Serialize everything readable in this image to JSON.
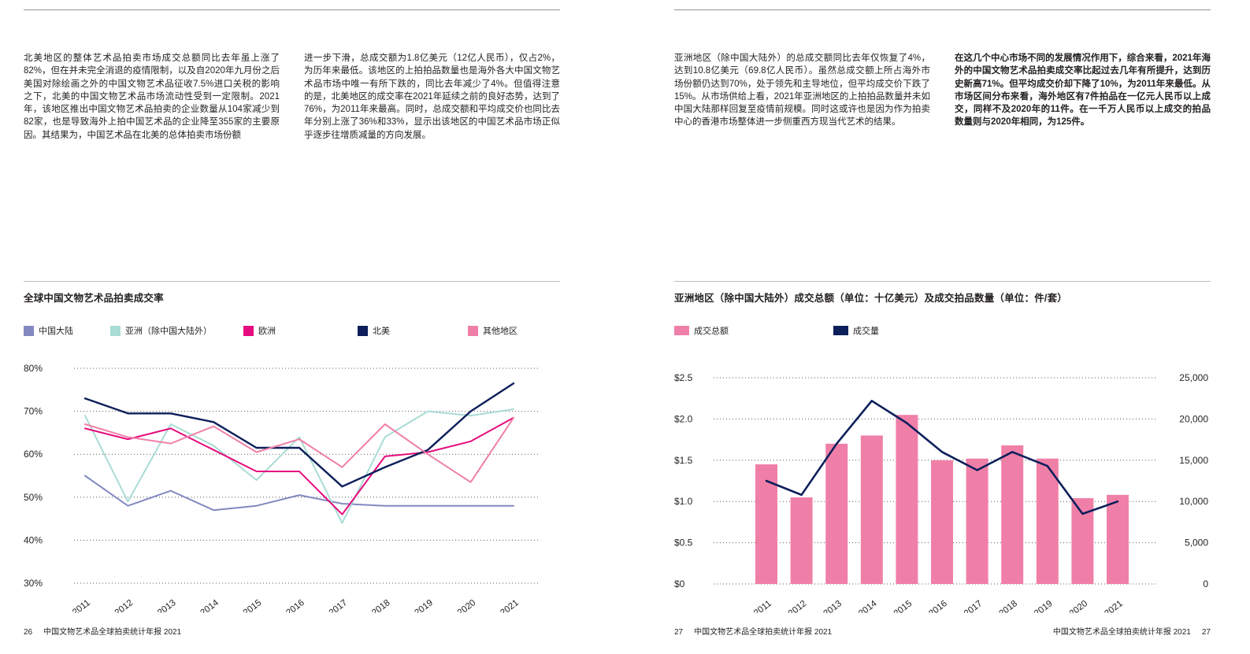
{
  "pages": {
    "left": {
      "page_number": "26",
      "report_title": "中国文物艺术品全球拍卖统计年报 2021",
      "paragraphs": {
        "col1": "北美地区的整体艺术品拍卖市场成交总额同比去年虽上涨了82%，但在并未完全消退的疫情限制，以及自2020年九月份之后美国对除绘画之外的中国文物艺术品征收7.5%进口关税的影响之下，北美的中国文物艺术品市场流动性受到一定限制。2021年，该地区推出中国文物艺术品拍卖的企业数量从104家减少到82家，也是导致海外上拍中国艺术品的企业降至355家的主要原因。其结果为，中国艺术品在北美的总体拍卖市场份额",
        "col2": "进一步下滑，总成交额为1.8亿美元（12亿人民币），仅占2%，为历年来最低。该地区的上拍拍品数量也是海外各大中国文物艺术品市场中唯一有所下跌的，同比去年减少了4%。但值得注意的是，北美地区的成交率在2021年延续之前的良好态势，达到了76%，为2011年来最高。同时，总成交额和平均成交价也同比去年分别上涨了36%和33%，显示出该地区的中国艺术品市场正似乎逐步往增质减量的方向发展。"
      }
    },
    "right": {
      "page_number": "27",
      "report_title": "中国文物艺术品全球拍卖统计年报 2021",
      "paragraphs": {
        "col1": "亚洲地区（除中国大陆外）的总成交额同比去年仅恢复了4%，达到10.8亿美元（69.8亿人民币）。虽然总成交额上所占海外市场份额仍达到70%，处于领先和主导地位，但平均成交价下跌了15%。从市场供给上看，2021年亚洲地区的上拍拍品数量并未如中国大陆那样回复至疫情前规模。同时这或许也是因为作为拍卖中心的香港市场整体进一步侧重西方现当代艺术的结果。",
        "col2_bold": "在这几个中心市场不同的发展情况作用下，综合来看，2021年海外的中国文物艺术品拍卖成交率比起过去几年有所提升，达到历史新高71%。但平均成交价却下降了10%，为2011年来最低。从市场区间分布来看，海外地区有7件拍品在一亿元人民币以上成交，同样不及2020年的11件。在一千万人民币以上成交的拍品数量则与2020年相同，为125件。"
      }
    }
  },
  "colors": {
    "mainland": "#8289c0",
    "asia": "#a9dcd4",
    "europe": "#e50c7e",
    "north_america": "#0c1f5a",
    "other": "#f07fa8",
    "bar": "#f07fa8",
    "volume_line": "#0c1f5a",
    "grid": "#595959",
    "text": "#231f20"
  },
  "chart_data": [
    {
      "type": "line",
      "title": "全球中国文物艺术品拍卖成交率",
      "x": [
        "2011",
        "2012",
        "2013",
        "2014",
        "2015",
        "2016",
        "2017",
        "2018",
        "2019",
        "2020",
        "2021"
      ],
      "ylim": [
        30,
        80
      ],
      "yticks": [
        "80%",
        "70%",
        "60%",
        "50%",
        "40%",
        "30%"
      ],
      "grid": "dotted-horizontal",
      "legend_position": "top",
      "series": [
        {
          "name": "中国大陆",
          "color_key": "mainland",
          "values": [
            55,
            48,
            51.5,
            47,
            48,
            50.5,
            48.5,
            48,
            48,
            48,
            48
          ]
        },
        {
          "name": "亚洲（除中国大陆外）",
          "color_key": "asia",
          "values": [
            69,
            49,
            67,
            62,
            54,
            64,
            44,
            64,
            70,
            69,
            70.5
          ]
        },
        {
          "name": "欧洲",
          "color_key": "europe",
          "values": [
            66,
            63.5,
            66,
            61,
            56,
            56,
            46,
            59.5,
            60.5,
            63,
            68.5
          ]
        },
        {
          "name": "北美",
          "color_key": "north_america",
          "values": [
            73,
            69.5,
            69.5,
            67.5,
            61.5,
            61.5,
            52.5,
            57,
            61,
            70,
            76.5
          ]
        },
        {
          "name": "其他地区",
          "color_key": "other",
          "values": [
            67,
            64,
            62.5,
            66.5,
            60.5,
            63.5,
            57,
            67,
            60,
            53.5,
            68.5
          ]
        }
      ]
    },
    {
      "type": "bar+line",
      "title": "亚洲地区（除中国大陆外）成交总额（单位：十亿美元）及成交拍品数量（单位：件/套）",
      "categories": [
        "2011",
        "2012",
        "2013",
        "2014",
        "2015",
        "2016",
        "2017",
        "2018",
        "2019",
        "2020",
        "2021"
      ],
      "bar_series": {
        "name": "成交总额",
        "unit": "十亿美元",
        "values": [
          1.45,
          1.05,
          1.7,
          1.8,
          2.05,
          1.5,
          1.52,
          1.68,
          1.52,
          1.04,
          1.08
        ]
      },
      "line_series": {
        "name": "成交量",
        "unit": "件/套",
        "values": [
          12500,
          10800,
          17000,
          22200,
          19500,
          16000,
          13800,
          16000,
          14300,
          8500,
          10000
        ]
      },
      "left_axis": {
        "max": 2.5,
        "ticks": [
          "$2.5",
          "$2.0",
          "$1.5",
          "$1.0",
          "$0.5",
          "$0"
        ]
      },
      "right_axis": {
        "max": 25000,
        "ticks": [
          "25,000",
          "20,000",
          "15,000",
          "10,000",
          "5,000",
          "0"
        ]
      },
      "grid": "dotted-horizontal",
      "legend_position": "top"
    }
  ]
}
